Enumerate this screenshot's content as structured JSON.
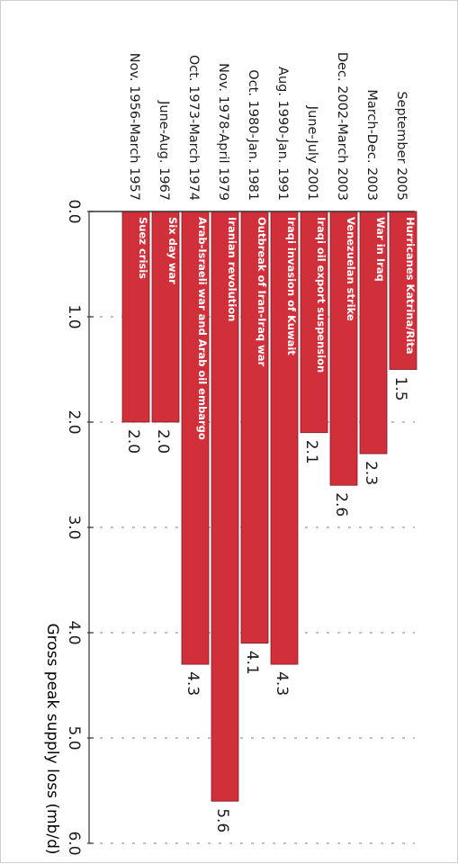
{
  "colors": {
    "bar": "#d12f3a",
    "bar_stroke": "#7a1d22",
    "grid": "#9a9a9a",
    "axis": "#333333",
    "text": "#1c1c1c",
    "bar_text": "#ffffff"
  },
  "chart_data": {
    "type": "bar",
    "orientation": "horizontal",
    "rotation": "90deg-clockwise",
    "title": "",
    "xlabel": "",
    "ylabel": "Gross peak supply loss (mb/d)",
    "ylim": [
      0,
      6
    ],
    "yticks": [
      "0.0",
      "1.0",
      "2.0",
      "3.0",
      "4.0",
      "5.0",
      "6.0"
    ],
    "grid": "dashed vertical gridlines",
    "categories": [
      "September 2005",
      "March-Dec. 2003",
      "Dec. 2002-March 2003",
      "June-July 2001",
      "Aug. 1990-Jan. 1991",
      "Oct. 1980-Jan. 1981",
      "Nov. 1978-April 1979",
      "Oct. 1973-March 1974",
      "June-Aug. 1967",
      "Nov. 1956-March 1957"
    ],
    "events": [
      "Hurricanes Katrina/Rita",
      "War in Iraq",
      "Venezuelan strike",
      "Iraqi oil export suspension",
      "Iraqi invasion of Kuwait",
      "Outbreak of Iran-Iraq war",
      "Iranian revolution",
      "Arab-Israeli war and Arab oil embargo",
      "Six day war",
      "Suez crisis"
    ],
    "values": [
      1.5,
      2.3,
      2.6,
      2.1,
      4.3,
      4.1,
      5.6,
      4.3,
      2.0,
      2.0
    ],
    "value_labels": [
      "1.5",
      "2.3",
      "2.6",
      "2.1",
      "4.3",
      "4.1",
      "5.6",
      "4.3",
      "2.0",
      "2.0"
    ]
  }
}
